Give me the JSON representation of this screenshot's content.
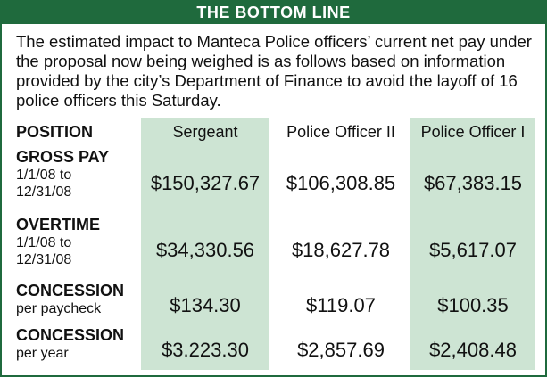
{
  "header": {
    "title": "THE BOTTOM LINE"
  },
  "intro": "The estimated impact to Manteca Police officers’ current net pay under the proposal now being weighed is as follows based on information provided by the city’s Department of Finance to avoid the layoff of 16 police officers this Saturday.",
  "table": {
    "columns": [
      "POSITION",
      "Sergeant",
      "Police Officer II",
      "Police Officer I"
    ],
    "rows": [
      {
        "label": "GROSS PAY",
        "sublabel": "1/1/08 to 12/31/08",
        "values": [
          "$150,327.67",
          "$106,308.85",
          "$67,383.15"
        ]
      },
      {
        "label": "OVERTIME",
        "sublabel": "1/1/08 to 12/31/08",
        "values": [
          "$34,330.56",
          "$18,627.78",
          "$5,617.07"
        ]
      },
      {
        "label": "CONCESSION",
        "sublabel": "per paycheck",
        "values": [
          "$134.30",
          "$119.07",
          "$100.35"
        ]
      },
      {
        "label": "CONCESSION",
        "sublabel": "per year",
        "values": [
          "$3.223.30",
          "$2,857.69",
          "$2,408.48"
        ]
      }
    ]
  }
}
